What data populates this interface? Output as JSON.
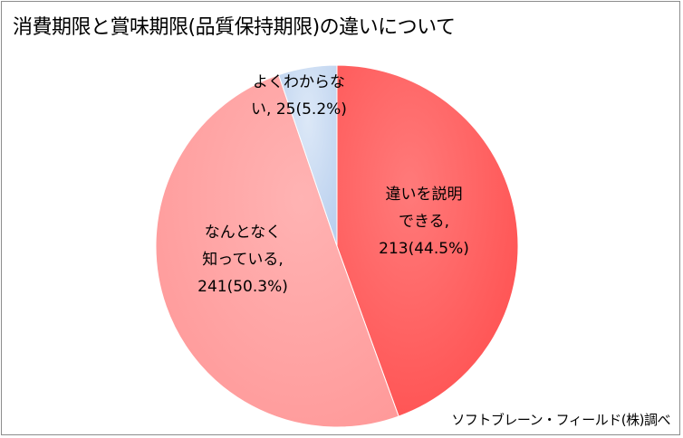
{
  "chart_data": {
    "type": "pie",
    "title": "消費期限と賞味期限(品質保持期限)の違いについて",
    "source": "ソフトブレーン・フィールド(株)調べ",
    "slices": [
      {
        "label_lines": [
          "違いを説明",
          "できる,",
          "213(44.5%)"
        ],
        "value": 213,
        "percent": 44.5,
        "color": "#ff5a5a"
      },
      {
        "label_lines": [
          "なんとなく",
          "知っている,",
          "241(50.3%)"
        ],
        "value": 241,
        "percent": 50.3,
        "color": "#ffa3a3"
      },
      {
        "label_lines": [
          "よくわからな",
          "い, 25(5.2%)"
        ],
        "value": 25,
        "percent": 5.2,
        "color": "#c6d9f1"
      }
    ]
  }
}
